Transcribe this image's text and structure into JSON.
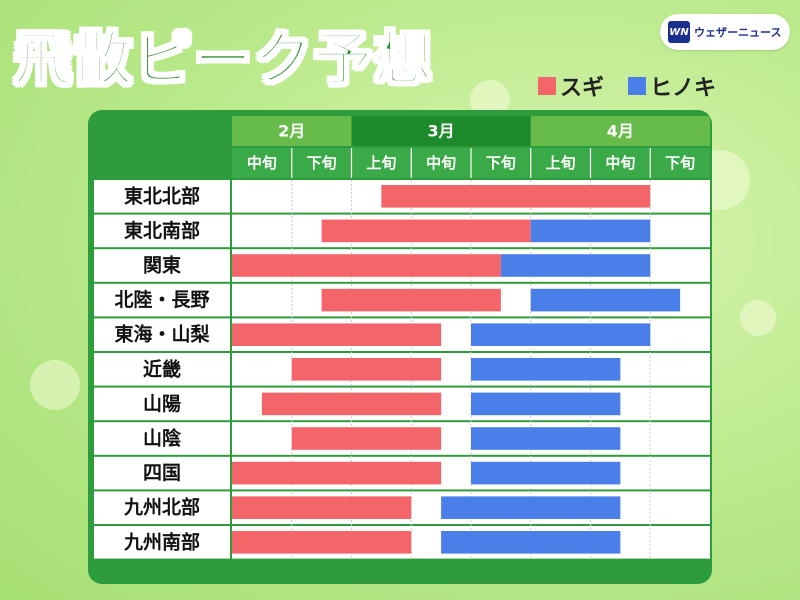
{
  "title": "飛散ピーク予想",
  "logo": {
    "mark": "WN",
    "text": "ウェザーニュース"
  },
  "legend": {
    "sugi_label": "スギ",
    "hinoki_label": "ヒノキ"
  },
  "colors": {
    "sugi": "#f4656a",
    "hinoki": "#4a7ee8",
    "frame": "#2e9b3c",
    "header_dark": "#1d8a2b",
    "header_mid": "#3aa947",
    "header_light": "#66bb4a"
  },
  "chart_data": {
    "type": "gantt",
    "title": "飛散ピーク予想",
    "months": [
      "2月",
      "3月",
      "4月"
    ],
    "periods": [
      "中旬",
      "下旬",
      "上旬",
      "中旬",
      "下旬",
      "上旬",
      "中旬",
      "下旬"
    ],
    "period_unit": "column index (0 = 2月中旬, 1 column = 1 旬)",
    "series": [
      {
        "name": "スギ",
        "color": "#f4656a"
      },
      {
        "name": "ヒノキ",
        "color": "#4a7ee8"
      }
    ],
    "regions": [
      {
        "name": "東北北部",
        "sugi": [
          2.5,
          7.0
        ],
        "hinoki": null
      },
      {
        "name": "東北南部",
        "sugi": [
          1.5,
          5.0
        ],
        "hinoki": [
          5.0,
          7.0
        ]
      },
      {
        "name": "関東",
        "sugi": [
          0.0,
          4.5
        ],
        "hinoki": [
          4.5,
          7.0
        ]
      },
      {
        "name": "北陸・長野",
        "sugi": [
          1.5,
          4.5
        ],
        "hinoki": [
          5.0,
          7.5
        ]
      },
      {
        "name": "東海・山梨",
        "sugi": [
          0.0,
          3.5
        ],
        "hinoki": [
          4.0,
          7.0
        ]
      },
      {
        "name": "近畿",
        "sugi": [
          1.0,
          3.5
        ],
        "hinoki": [
          4.0,
          6.5
        ]
      },
      {
        "name": "山陽",
        "sugi": [
          0.5,
          3.5
        ],
        "hinoki": [
          4.0,
          6.5
        ]
      },
      {
        "name": "山陰",
        "sugi": [
          1.0,
          3.5
        ],
        "hinoki": [
          4.0,
          6.5
        ]
      },
      {
        "name": "四国",
        "sugi": [
          0.0,
          3.5
        ],
        "hinoki": [
          4.0,
          6.5
        ]
      },
      {
        "name": "九州北部",
        "sugi": [
          0.0,
          3.0
        ],
        "hinoki": [
          3.5,
          6.5
        ]
      },
      {
        "name": "九州南部",
        "sugi": [
          0.0,
          3.0
        ],
        "hinoki": [
          3.5,
          6.5
        ]
      }
    ]
  }
}
